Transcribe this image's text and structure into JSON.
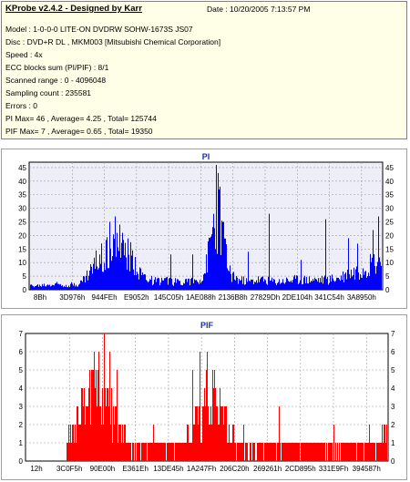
{
  "header": {
    "title": "KProbe v2.4.2 - Designed by Karr",
    "date": "Date : 10/20/2005 7:13:57 PM"
  },
  "info_lines": [
    "Model : 1-0-0-0 LITE-ON DVDRW SOHW-1673S JS07",
    "Disc : DVD+R DL , MKM003 [Mitsubishi Chemical Corporation]",
    "Speed : 4x",
    "ECC blocks sum (PI/PIF) : 8/1",
    "Scanned range : 0 - 4096048",
    "Sampling count : 235581",
    "Errors : 0",
    "PI Max= 46 , Average= 4.25 , Total= 125744",
    "PIF Max= 7 , Average= 0.65 , Total= 19350"
  ],
  "chart_data": [
    {
      "type": "area",
      "title": "PI",
      "ylim": [
        0,
        47
      ],
      "yticks": [
        0,
        5,
        10,
        15,
        20,
        25,
        30,
        35,
        40,
        45
      ],
      "xtick_labels": [
        "8Bh",
        "3D976h",
        "944FEh",
        "E9052h",
        "145C05h",
        "1AE088h",
        "2136B8h",
        "27829Dh",
        "2DE104h",
        "341C54h",
        "3A8950h"
      ],
      "grid": true,
      "color": "#0000ff",
      "background": "#eeeef8",
      "envelope": [
        [
          0,
          2
        ],
        [
          0.02,
          2
        ],
        [
          0.05,
          2.5
        ],
        [
          0.08,
          3
        ],
        [
          0.1,
          2.5
        ],
        [
          0.14,
          3
        ],
        [
          0.16,
          7
        ],
        [
          0.18,
          12
        ],
        [
          0.2,
          17
        ],
        [
          0.22,
          20
        ],
        [
          0.24,
          23
        ],
        [
          0.26,
          20
        ],
        [
          0.28,
          17
        ],
        [
          0.3,
          13
        ],
        [
          0.32,
          7
        ],
        [
          0.34,
          5
        ],
        [
          0.36,
          4
        ],
        [
          0.38,
          5
        ],
        [
          0.4,
          4
        ],
        [
          0.42,
          4
        ],
        [
          0.44,
          5
        ],
        [
          0.46,
          4
        ],
        [
          0.48,
          5
        ],
        [
          0.49,
          6
        ],
        [
          0.5,
          12
        ],
        [
          0.51,
          22
        ],
        [
          0.52,
          33
        ],
        [
          0.53,
          36
        ],
        [
          0.535,
          40
        ],
        [
          0.54,
          32
        ],
        [
          0.55,
          22
        ],
        [
          0.56,
          13
        ],
        [
          0.57,
          8
        ],
        [
          0.59,
          5
        ],
        [
          0.62,
          4
        ],
        [
          0.65,
          5
        ],
        [
          0.7,
          4
        ],
        [
          0.75,
          5
        ],
        [
          0.8,
          5
        ],
        [
          0.84,
          5
        ],
        [
          0.88,
          6
        ],
        [
          0.9,
          8
        ],
        [
          0.92,
          9
        ],
        [
          0.94,
          11
        ],
        [
          0.96,
          13
        ],
        [
          0.98,
          14
        ],
        [
          1,
          15
        ]
      ],
      "spikes": [
        [
          0.528,
          46
        ],
        [
          0.533,
          43
        ],
        [
          0.538,
          38
        ],
        [
          0.55,
          25
        ],
        [
          0.225,
          25
        ],
        [
          0.24,
          27
        ],
        [
          0.255,
          24
        ],
        [
          0.68,
          28
        ],
        [
          0.84,
          26
        ],
        [
          0.99,
          27
        ],
        [
          0.975,
          22
        ],
        [
          0.905,
          19
        ],
        [
          0.93,
          17
        ],
        [
          0.4,
          13
        ],
        [
          0.46,
          13
        ],
        [
          0.62,
          14
        ],
        [
          0.77,
          11
        ]
      ]
    },
    {
      "type": "bar",
      "title": "PIF",
      "ylim": [
        0,
        7
      ],
      "yticks": [
        0,
        1,
        2,
        3,
        4,
        5,
        6,
        7
      ],
      "xtick_labels": [
        "12h",
        "3C0F5h",
        "90E00h",
        "E361Eh",
        "13DE45h",
        "1A247Fh",
        "206C20h",
        "269261h",
        "2CD895h",
        "331E9Fh",
        "394587h"
      ],
      "grid": true,
      "color": "#ff0000",
      "background": "#ffffff",
      "envelope": [
        [
          0,
          0
        ],
        [
          0.1,
          0
        ],
        [
          0.11,
          1
        ],
        [
          0.13,
          2
        ],
        [
          0.15,
          3
        ],
        [
          0.17,
          4
        ],
        [
          0.2,
          5
        ],
        [
          0.22,
          4
        ],
        [
          0.24,
          3
        ],
        [
          0.26,
          2
        ],
        [
          0.28,
          1
        ],
        [
          0.32,
          1
        ],
        [
          0.36,
          1
        ],
        [
          0.4,
          1
        ],
        [
          0.44,
          1
        ],
        [
          0.46,
          2
        ],
        [
          0.48,
          3
        ],
        [
          0.5,
          4
        ],
        [
          0.52,
          4
        ],
        [
          0.54,
          3
        ],
        [
          0.56,
          2
        ],
        [
          0.58,
          1
        ],
        [
          0.62,
          1
        ],
        [
          0.66,
          1
        ],
        [
          0.7,
          1
        ],
        [
          0.74,
          1
        ],
        [
          0.78,
          1
        ],
        [
          0.82,
          1
        ],
        [
          0.86,
          1
        ],
        [
          0.9,
          1
        ],
        [
          0.93,
          1
        ],
        [
          0.96,
          1
        ],
        [
          0.98,
          1
        ],
        [
          1,
          2
        ]
      ],
      "spikes": [
        [
          0.215,
          7
        ],
        [
          0.2,
          6
        ],
        [
          0.23,
          6
        ],
        [
          0.18,
          5
        ],
        [
          0.25,
          5
        ],
        [
          0.48,
          6
        ],
        [
          0.5,
          6
        ],
        [
          0.52,
          5
        ],
        [
          0.46,
          5
        ],
        [
          0.7,
          3
        ],
        [
          0.85,
          2
        ],
        [
          0.95,
          2
        ],
        [
          0.99,
          2
        ],
        [
          0.6,
          2
        ],
        [
          0.35,
          2
        ]
      ]
    }
  ]
}
